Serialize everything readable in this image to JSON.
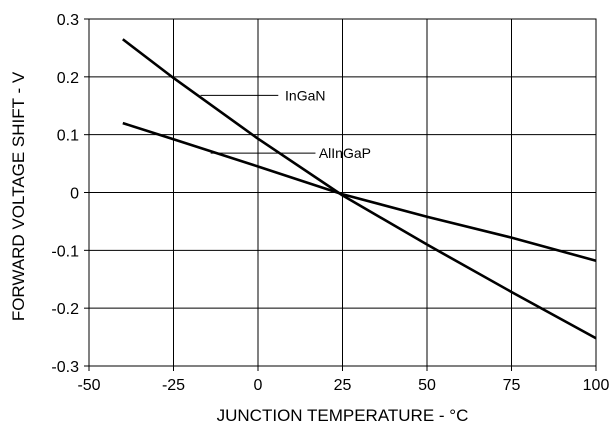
{
  "chart_data": {
    "type": "line",
    "title": "",
    "xlabel": "JUNCTION TEMPERATURE - °C",
    "ylabel": "FORWARD VOLTAGE SHIFT - V",
    "xlim": [
      -50,
      100
    ],
    "ylim": [
      -0.3,
      0.3
    ],
    "x_ticks": [
      -50,
      -25,
      0,
      25,
      50,
      75,
      100
    ],
    "x_tick_labels": [
      "-50",
      "-25",
      "0",
      "25",
      "50",
      "75",
      "100"
    ],
    "y_ticks": [
      -0.3,
      -0.2,
      -0.1,
      0,
      0.1,
      0.2,
      0.3
    ],
    "y_tick_labels": [
      "-0.3",
      "-0.2",
      "-0.1",
      "0",
      "0.1",
      "0.2",
      "0.3"
    ],
    "grid": true,
    "legend": "none",
    "series": [
      {
        "name": "InGaN",
        "x": [
          -40,
          -25,
          0,
          25,
          50,
          75,
          100
        ],
        "y": [
          0.265,
          0.198,
          0.093,
          -0.005,
          -0.09,
          -0.172,
          -0.252
        ]
      },
      {
        "name": "AlInGaP",
        "x": [
          -40,
          -25,
          0,
          25,
          50,
          75,
          100
        ],
        "y": [
          0.12,
          0.092,
          0.045,
          -0.003,
          -0.042,
          -0.078,
          -0.118
        ]
      }
    ],
    "annotations": [
      {
        "text": "InGaN",
        "series": "InGaN",
        "line_from": {
          "x": -17,
          "y": 0.168
        },
        "line_to": {
          "x": 6,
          "y": 0.168
        },
        "text_at": {
          "x": 8,
          "y": 0.168
        }
      },
      {
        "text": "AlInGaP",
        "series": "AlInGaP",
        "line_from": {
          "x": -14,
          "y": 0.068
        },
        "line_to": {
          "x": 17,
          "y": 0.068
        },
        "text_at": {
          "x": 18,
          "y": 0.068
        }
      }
    ],
    "line_color": "#000000",
    "grid_color": "#000000"
  }
}
